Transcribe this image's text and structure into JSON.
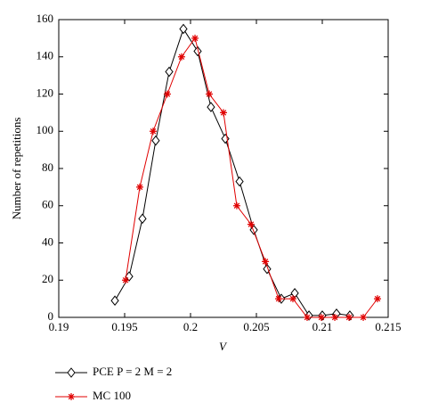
{
  "chart_data": {
    "type": "line",
    "x_label": "V",
    "y_label": "Number of repetitions",
    "xlim": [
      0.19,
      0.215
    ],
    "xticks": [
      0.19,
      0.195,
      0.2,
      0.205,
      0.21,
      0.215
    ],
    "ylim": [
      0,
      160
    ],
    "yticks": [
      0,
      20,
      40,
      60,
      80,
      100,
      120,
      140,
      160
    ],
    "legend": "bottom-left",
    "series": [
      {
        "name": "PCE P = 2 M = 2",
        "color": "#000000",
        "marker": "diamond",
        "x": [
          0.19426,
          0.19534,
          0.19635,
          0.19736,
          0.19838,
          0.19946,
          0.20054,
          0.20155,
          0.20264,
          0.20372,
          0.2048,
          0.20581,
          0.20689,
          0.20791,
          0.20899,
          0.21,
          0.21108,
          0.21209
        ],
        "values": [
          9,
          22,
          53,
          95,
          132,
          155,
          143,
          113,
          96,
          73,
          47,
          26,
          10,
          13,
          1,
          1,
          2,
          1
        ]
      },
      {
        "name": "MC 100",
        "color": "#e00000",
        "marker": "star",
        "x": [
          0.19507,
          0.19615,
          0.19716,
          0.19824,
          0.19932,
          0.20034,
          0.20142,
          0.2025,
          0.20351,
          0.20459,
          0.20568,
          0.20669,
          0.20777,
          0.20885,
          0.20993,
          0.21095,
          0.21203,
          0.21311,
          0.21419
        ],
        "values": [
          20,
          70,
          100,
          120,
          140,
          150,
          120,
          110,
          60,
          50,
          30,
          10,
          10,
          0,
          0,
          0,
          0,
          0,
          10
        ]
      }
    ]
  }
}
